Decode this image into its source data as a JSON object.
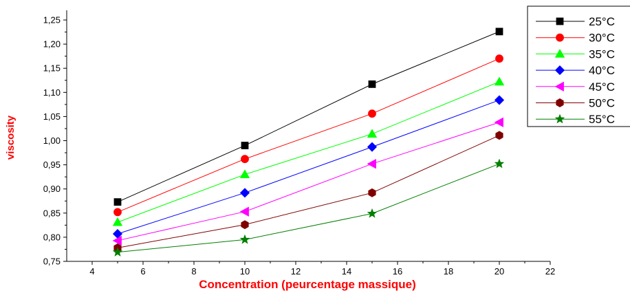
{
  "chart_data": {
    "type": "line",
    "xlabel": "Concentration (peurcentage massique)",
    "ylabel": "viscosity",
    "xlim": [
      3,
      22
    ],
    "ylim": [
      0.75,
      1.27
    ],
    "xticks": [
      4,
      6,
      8,
      10,
      12,
      14,
      16,
      18,
      20,
      22
    ],
    "yticks": [
      0.75,
      0.8,
      0.85,
      0.9,
      0.95,
      1.0,
      1.05,
      1.1,
      1.15,
      1.2,
      1.25
    ],
    "ytick_labels": [
      "0,75",
      "0,80",
      "0,85",
      "0,90",
      "0,95",
      "1,00",
      "1,05",
      "1,10",
      "1,15",
      "1,20",
      "1,25"
    ],
    "x": [
      5,
      10,
      15,
      20
    ],
    "grid": false,
    "legend_position": "top-right",
    "series": [
      {
        "name": "25°C",
        "color": "#000000",
        "marker": "square",
        "values": [
          0.873,
          0.99,
          1.117,
          1.226
        ]
      },
      {
        "name": "30°C",
        "color": "#ff0000",
        "marker": "circle",
        "values": [
          0.852,
          0.962,
          1.056,
          1.17
        ]
      },
      {
        "name": "35°C",
        "color": "#00ff00",
        "marker": "triangle-up",
        "values": [
          0.831,
          0.93,
          1.014,
          1.122
        ]
      },
      {
        "name": "40°C",
        "color": "#0000ff",
        "marker": "diamond",
        "values": [
          0.807,
          0.892,
          0.987,
          1.084
        ]
      },
      {
        "name": "45°C",
        "color": "#ff00ff",
        "marker": "triangle-left",
        "values": [
          0.793,
          0.853,
          0.952,
          1.038
        ]
      },
      {
        "name": "50°C",
        "color": "#800000",
        "marker": "hexagon",
        "values": [
          0.778,
          0.826,
          0.892,
          1.011
        ]
      },
      {
        "name": "55°C",
        "color": "#007f00",
        "marker": "star",
        "values": [
          0.769,
          0.795,
          0.849,
          0.952
        ]
      }
    ]
  }
}
